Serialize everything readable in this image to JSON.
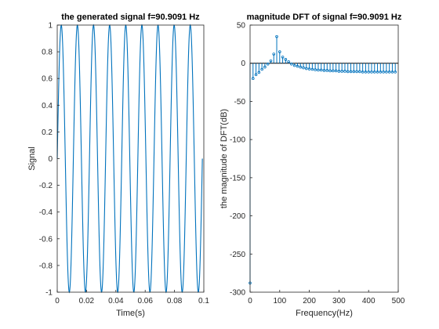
{
  "chart_data": [
    {
      "type": "line",
      "title": "the generated signal f=90.9091 Hz",
      "xlabel": "Time(s)",
      "ylabel": "Signal",
      "xlim": [
        0,
        0.1
      ],
      "ylim": [
        -1,
        1
      ],
      "x_ticks": [
        "0",
        "0.02",
        "0.04",
        "0.06",
        "0.08",
        "0.1"
      ],
      "y_ticks": [
        "1",
        "0.8",
        "0.6",
        "0.4",
        "0.2",
        "0",
        "-0.2",
        "-0.4",
        "-0.6",
        "-0.8",
        "-1"
      ],
      "signal": {
        "function": "sin",
        "frequency_hz": 90.9091,
        "amplitude": 1,
        "t_start": 0,
        "t_end": 0.099
      },
      "color": "#0072bd"
    },
    {
      "type": "stem",
      "title": "magnitude DFT of signal f=90.9091 Hz",
      "xlabel": "Frequency(Hz)",
      "ylabel": "the magnitude of DFT(dB)",
      "xlim": [
        0,
        500
      ],
      "ylim": [
        -300,
        50
      ],
      "x_ticks": [
        "0",
        "100",
        "200",
        "300",
        "400",
        "500"
      ],
      "y_ticks": [
        "50",
        "0",
        "-50",
        "-100",
        "-150",
        "-200",
        "-250",
        "-300"
      ],
      "x": [
        0,
        10,
        20,
        30,
        40,
        50,
        60,
        70,
        80,
        90,
        100,
        110,
        120,
        130,
        140,
        150,
        160,
        170,
        180,
        190,
        200,
        210,
        220,
        230,
        240,
        250,
        260,
        270,
        280,
        290,
        300,
        310,
        320,
        330,
        340,
        350,
        360,
        370,
        380,
        390,
        400,
        410,
        420,
        430,
        440,
        450,
        460,
        470,
        480,
        490
      ],
      "values": [
        -288,
        -20,
        -15,
        -12,
        -8,
        -5,
        -1,
        3,
        12,
        35,
        15,
        8,
        5,
        2,
        -1,
        -3,
        -4,
        -5,
        -6,
        -7,
        -7.5,
        -8,
        -8.5,
        -9,
        -9,
        -9.5,
        -9.5,
        -10,
        -10,
        -10,
        -10.5,
        -10.5,
        -10.5,
        -11,
        -11,
        -11,
        -11,
        -11,
        -11.5,
        -11.5,
        -11.5,
        -11.5,
        -11.5,
        -11.5,
        -11.5,
        -11.5,
        -11.5,
        -11.5,
        -11.5,
        -11.5
      ],
      "color": "#0072bd"
    }
  ]
}
